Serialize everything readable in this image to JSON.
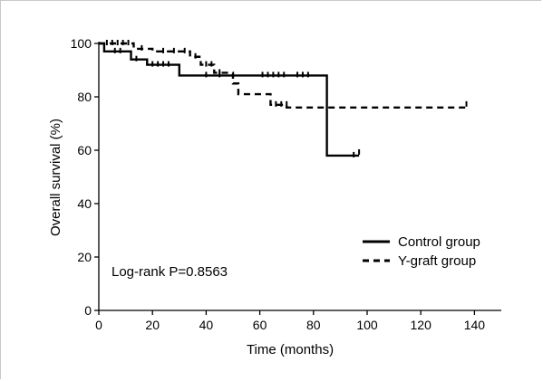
{
  "chart_data": {
    "type": "line",
    "subtype": "kaplan-meier",
    "xlabel": "Time (months)",
    "ylabel": "Overall survival (%)",
    "xlim": [
      0,
      150
    ],
    "ylim": [
      0,
      100
    ],
    "xticks": [
      0,
      20,
      40,
      60,
      80,
      100,
      120,
      140
    ],
    "yticks": [
      0,
      20,
      40,
      60,
      80,
      100
    ],
    "grid": false,
    "legend_position": "bottom-right",
    "annotation": "Log-rank P=0.8563",
    "series": [
      {
        "name": "Control group",
        "style": "solid",
        "color": "#000000",
        "steps": [
          [
            0,
            100
          ],
          [
            2,
            97
          ],
          [
            10,
            97
          ],
          [
            12,
            94
          ],
          [
            17,
            94
          ],
          [
            18,
            92
          ],
          [
            28,
            92
          ],
          [
            30,
            88
          ],
          [
            85,
            88
          ],
          [
            85,
            58
          ],
          [
            97,
            58
          ]
        ],
        "censored": [
          [
            6,
            97
          ],
          [
            8,
            97
          ],
          [
            14,
            94
          ],
          [
            20,
            92
          ],
          [
            22,
            92
          ],
          [
            24,
            92
          ],
          [
            26,
            92
          ],
          [
            40,
            88
          ],
          [
            45,
            88
          ],
          [
            61,
            88
          ],
          [
            63,
            88
          ],
          [
            65,
            88
          ],
          [
            67,
            88
          ],
          [
            69,
            88
          ],
          [
            74,
            88
          ],
          [
            76,
            88
          ],
          [
            78,
            88
          ],
          [
            95,
            58
          ],
          [
            97,
            59
          ]
        ]
      },
      {
        "name": "Y-graft group",
        "style": "dashed",
        "color": "#000000",
        "steps": [
          [
            0,
            100
          ],
          [
            12,
            100
          ],
          [
            13,
            98
          ],
          [
            20,
            97
          ],
          [
            34,
            95
          ],
          [
            38,
            92
          ],
          [
            43,
            89
          ],
          [
            50,
            85
          ],
          [
            52,
            81
          ],
          [
            64,
            77
          ],
          [
            70,
            76
          ],
          [
            137,
            76
          ]
        ],
        "censored": [
          [
            3,
            100
          ],
          [
            5,
            100
          ],
          [
            7,
            100
          ],
          [
            9,
            100
          ],
          [
            11,
            100
          ],
          [
            16,
            98
          ],
          [
            24,
            97
          ],
          [
            28,
            97
          ],
          [
            32,
            97
          ],
          [
            36,
            95
          ],
          [
            40,
            92
          ],
          [
            42,
            92
          ],
          [
            45,
            89
          ],
          [
            66,
            77
          ],
          [
            68,
            77
          ],
          [
            70,
            77
          ],
          [
            137,
            77
          ]
        ]
      }
    ]
  }
}
